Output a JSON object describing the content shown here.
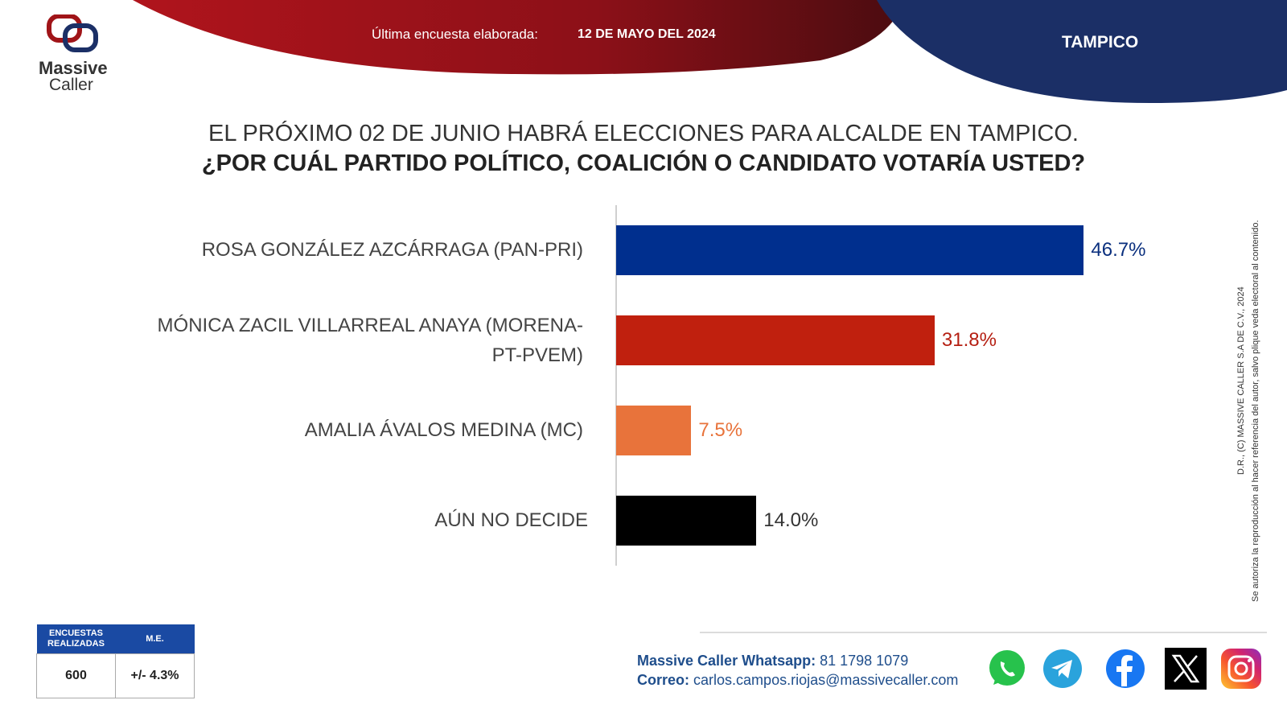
{
  "header": {
    "survey_label": "Última encuesta elaborada:",
    "survey_date": "12 DE MAYO DEL 2024",
    "city": "TAMPICO"
  },
  "logo": {
    "line1": "Massive",
    "line2": "Caller"
  },
  "chart_data": {
    "type": "bar",
    "orientation": "horizontal",
    "title": "EL PRÓXIMO 02 DE JUNIO HABRÁ ELECCIONES PARA ALCALDE EN TAMPICO.",
    "subtitle": "¿POR CUÁL PARTIDO POLÍTICO, COALICIÓN O CANDIDATO VOTARÍA USTED?",
    "categories": [
      "ROSA GONZÁLEZ AZCÁRRAGA (PAN-PRI)",
      "MÓNICA ZACIL VILLARREAL ANAYA  (MORENA-PT-PVEM)",
      "AMALIA ÁVALOS MEDINA (MC)",
      "AÚN NO DECIDE"
    ],
    "values": [
      46.7,
      31.8,
      7.5,
      14.0
    ],
    "value_labels": [
      "46.7%",
      "31.8%",
      "7.5%",
      "14.0%"
    ],
    "colors": [
      "#002f8e",
      "#c0200e",
      "#e8733b",
      "#000000"
    ],
    "label_colors": [
      "#0a2f7e",
      "#b51f12",
      "#e8733b",
      "#333333"
    ],
    "xlim": [
      0,
      50
    ],
    "grid": false
  },
  "side_note": {
    "line1": "D.R., (C) MASSIVE CALLER S.A DE C.V., 2024",
    "line2": "Se autoriza la reproducción al hacer referencia del autor, salvo plique veda electoral al contenido."
  },
  "stats": {
    "col1_header": "ENCUESTAS REALIZADAS",
    "col2_header": "M.E.",
    "col1_value": "600",
    "col2_value": "+/- 4.3%"
  },
  "contact": {
    "whatsapp_label": "Massive Caller Whatsapp:",
    "whatsapp_value": "81 1798 1079",
    "email_label": "Correo:",
    "email_value": "carlos.campos.riojas@massivecaller.com"
  },
  "social_icons": [
    "whatsapp-icon",
    "telegram-icon",
    "facebook-icon",
    "x-icon",
    "instagram-icon"
  ]
}
